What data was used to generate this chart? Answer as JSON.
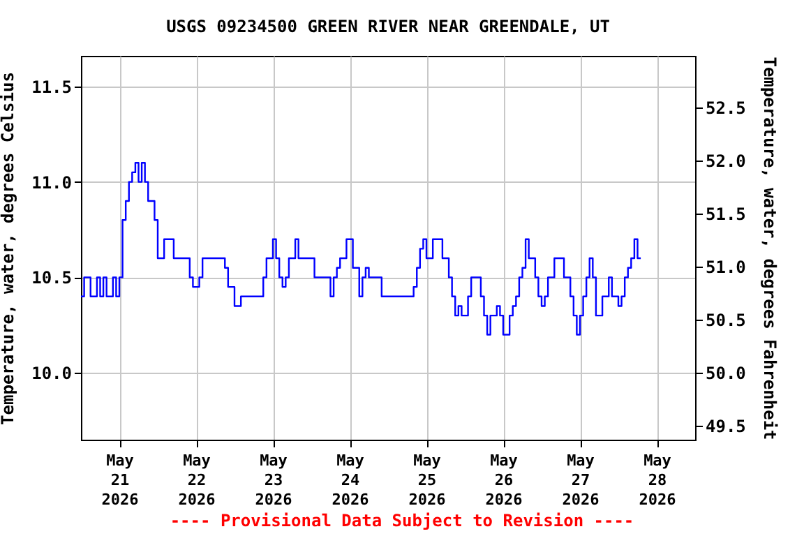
{
  "chart_data": {
    "type": "step",
    "title": "USGS 09234500 GREEN RIVER NEAR GREENDALE, UT",
    "ylabel": "Temperature, water, degrees Celsius",
    "y2label": "Temperature, water, degrees Fahrenheit",
    "annotations": [
      "---- Provisional Data Subject to Revision ----"
    ],
    "xlim": [
      "2026-05-20T12:00",
      "2026-05-28T12:00"
    ],
    "xticks": [
      {
        "value": "2026-05-21",
        "label": "May 21 2026"
      },
      {
        "value": "2026-05-22",
        "label": "May 22 2026"
      },
      {
        "value": "2026-05-23",
        "label": "May 23 2026"
      },
      {
        "value": "2026-05-24",
        "label": "May 24 2026"
      },
      {
        "value": "2026-05-25",
        "label": "May 25 2026"
      },
      {
        "value": "2026-05-26",
        "label": "May 26 2026"
      },
      {
        "value": "2026-05-27",
        "label": "May 27 2026"
      },
      {
        "value": "2026-05-28",
        "label": "May 28 2026"
      }
    ],
    "ylim": [
      9.65,
      11.66
    ],
    "yticks": [
      {
        "value": 10,
        "label": "10.0"
      },
      10.5,
      {
        "value": 11,
        "label": "11.0"
      },
      11.5
    ],
    "y2lim": [
      49.37,
      52.99
    ],
    "y2ticks": [
      49.5,
      {
        "value": 50,
        "label": "50.0"
      },
      50.5,
      {
        "value": 51,
        "label": "51.0"
      },
      51.5,
      {
        "value": 52,
        "label": "52.0"
      },
      52.5
    ],
    "grid": true,
    "marker": "none",
    "x": [
      "2026-05-20T12:00",
      "2026-05-20T13:00",
      "2026-05-20T15:00",
      "2026-05-20T17:00",
      "2026-05-20T18:00",
      "2026-05-20T19:00",
      "2026-05-20T20:00",
      "2026-05-20T22:00",
      "2026-05-20T23:00",
      "2026-05-21T00:00",
      "2026-05-21T01:00",
      "2026-05-21T02:00",
      "2026-05-21T03:00",
      "2026-05-21T04:00",
      "2026-05-21T05:00",
      "2026-05-21T06:00",
      "2026-05-21T07:00",
      "2026-05-21T08:00",
      "2026-05-21T09:00",
      "2026-05-21T11:00",
      "2026-05-21T12:00",
      "2026-05-21T14:00",
      "2026-05-21T17:00",
      "2026-05-21T22:00",
      "2026-05-21T23:00",
      "2026-05-22T01:00",
      "2026-05-22T02:00",
      "2026-05-22T09:00",
      "2026-05-22T10:00",
      "2026-05-22T12:00",
      "2026-05-22T14:00",
      "2026-05-22T21:00",
      "2026-05-22T22:00",
      "2026-05-23T00:00",
      "2026-05-23T01:00",
      "2026-05-23T02:00",
      "2026-05-23T03:00",
      "2026-05-23T04:00",
      "2026-05-23T05:00",
      "2026-05-23T07:00",
      "2026-05-23T08:00",
      "2026-05-23T13:00",
      "2026-05-23T18:00",
      "2026-05-23T19:00",
      "2026-05-23T20:00",
      "2026-05-23T21:00",
      "2026-05-23T23:00",
      "2026-05-24T01:00",
      "2026-05-24T03:00",
      "2026-05-24T04:00",
      "2026-05-24T05:00",
      "2026-05-24T06:00",
      "2026-05-24T10:00",
      "2026-05-24T20:00",
      "2026-05-24T21:00",
      "2026-05-24T22:00",
      "2026-05-24T23:00",
      "2026-05-25T00:00",
      "2026-05-25T02:00",
      "2026-05-25T05:00",
      "2026-05-25T07:00",
      "2026-05-25T08:00",
      "2026-05-25T09:00",
      "2026-05-25T10:00",
      "2026-05-25T11:00",
      "2026-05-25T13:00",
      "2026-05-25T14:00",
      "2026-05-25T17:00",
      "2026-05-25T18:00",
      "2026-05-25T19:00",
      "2026-05-25T20:00",
      "2026-05-25T22:00",
      "2026-05-25T23:00",
      "2026-05-26T00:00",
      "2026-05-26T02:00",
      "2026-05-26T03:00",
      "2026-05-26T04:00",
      "2026-05-26T05:00",
      "2026-05-26T06:00",
      "2026-05-26T07:00",
      "2026-05-26T08:00",
      "2026-05-26T10:00",
      "2026-05-26T11:00",
      "2026-05-26T12:00",
      "2026-05-26T13:00",
      "2026-05-26T14:00",
      "2026-05-26T16:00",
      "2026-05-26T19:00",
      "2026-05-26T21:00",
      "2026-05-26T22:00",
      "2026-05-26T23:00",
      "2026-05-27T00:00",
      "2026-05-27T01:00",
      "2026-05-27T02:00",
      "2026-05-27T03:00",
      "2026-05-27T04:00",
      "2026-05-27T05:00",
      "2026-05-27T07:00",
      "2026-05-27T09:00",
      "2026-05-27T10:00",
      "2026-05-27T12:00",
      "2026-05-27T13:00",
      "2026-05-27T14:00",
      "2026-05-27T15:00",
      "2026-05-27T16:00",
      "2026-05-27T17:00",
      "2026-05-27T18:00",
      "2026-05-27T19:00"
    ],
    "series": [
      {
        "color": "#0000ff",
        "values": [
          10.4,
          10.5,
          10.4,
          10.5,
          10.4,
          10.5,
          10.4,
          10.5,
          10.4,
          10.5,
          10.8,
          10.9,
          11.0,
          11.05,
          11.1,
          11.0,
          11.1,
          11.0,
          10.9,
          10.8,
          10.6,
          10.7,
          10.6,
          10.5,
          10.45,
          10.5,
          10.6,
          10.55,
          10.45,
          10.35,
          10.4,
          10.5,
          10.6,
          10.7,
          10.6,
          10.5,
          10.45,
          10.5,
          10.6,
          10.7,
          10.6,
          10.5,
          10.4,
          10.5,
          10.55,
          10.6,
          10.7,
          10.55,
          10.4,
          10.5,
          10.55,
          10.5,
          10.4,
          10.45,
          10.55,
          10.65,
          10.7,
          10.6,
          10.7,
          10.6,
          10.5,
          10.4,
          10.3,
          10.35,
          10.3,
          10.4,
          10.5,
          10.4,
          10.3,
          10.2,
          10.3,
          10.35,
          10.3,
          10.2,
          10.3,
          10.35,
          10.4,
          10.5,
          10.55,
          10.7,
          10.6,
          10.5,
          10.4,
          10.35,
          10.4,
          10.5,
          10.6,
          10.5,
          10.4,
          10.3,
          10.2,
          10.3,
          10.4,
          10.5,
          10.6,
          10.5,
          10.3,
          10.4,
          10.5,
          10.4,
          10.35,
          10.4,
          10.5,
          10.55,
          10.6,
          10.7,
          10.6,
          10.6
        ]
      }
    ]
  }
}
